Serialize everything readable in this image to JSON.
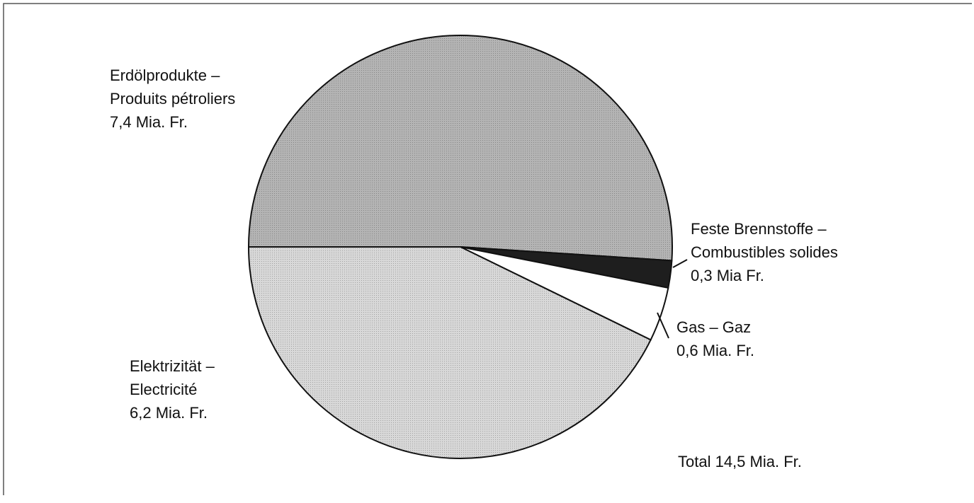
{
  "chart_data": {
    "type": "pie",
    "categories": [
      [
        "Erdölprodukte –",
        "Produits pétroliers"
      ],
      [
        "Feste Brennstoffe –",
        "Combustibles solides"
      ],
      [
        "Gas  –  Gaz"
      ],
      [
        "Elektrizität –",
        "Electricité"
      ]
    ],
    "values": [
      7.4,
      0.3,
      0.6,
      6.2
    ],
    "value_labels": [
      "7,4 Mia. Fr.",
      "0,3 Mia Fr.",
      "0,6 Mia. Fr.",
      "6,2 Mia. Fr."
    ],
    "colors": [
      "#b4b4b4",
      "#1e1e1e",
      "#ffffff",
      "#d8d8d8"
    ],
    "annotation": "Total 14,5 Mia. Fr."
  }
}
